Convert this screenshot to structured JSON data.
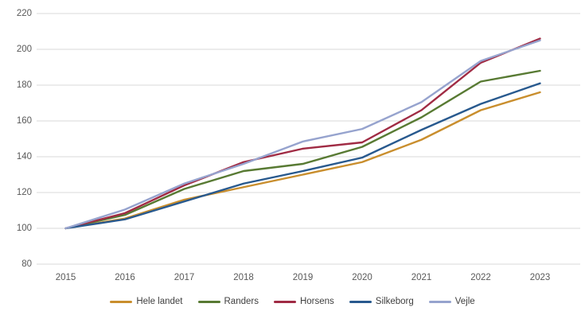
{
  "chart_data": {
    "type": "line",
    "categories": [
      "2015",
      "2016",
      "2017",
      "2018",
      "2019",
      "2020",
      "2021",
      "2022",
      "2023"
    ],
    "yticklabels": [
      "80",
      "100",
      "120",
      "140",
      "160",
      "180",
      "200",
      "220"
    ],
    "ylim": [
      80,
      220
    ],
    "ytick_step": 20,
    "grid": true,
    "legend_position": "bottom",
    "series": [
      {
        "name": "Hele landet",
        "color": "#C98E2D",
        "values": [
          100,
          105.5,
          116,
          123,
          130,
          137,
          149.5,
          166,
          176
        ]
      },
      {
        "name": "Randers",
        "color": "#587A33",
        "values": [
          100,
          107.5,
          122,
          132,
          136,
          145.5,
          162,
          182,
          188
        ]
      },
      {
        "name": "Horsens",
        "color": "#A02B44",
        "values": [
          100,
          108.5,
          124,
          137,
          144.5,
          148,
          166,
          192.5,
          206
        ]
      },
      {
        "name": "Silkeborg",
        "color": "#28598E",
        "values": [
          100,
          105,
          115,
          125,
          132,
          139.5,
          155,
          169.5,
          181
        ]
      },
      {
        "name": "Vejle",
        "color": "#96A3CE",
        "values": [
          100,
          110.5,
          125,
          136,
          148.5,
          155.5,
          170.5,
          193.5,
          205
        ]
      }
    ],
    "colors": {
      "gridline": "#D9D9D9",
      "axis_text": "#595959",
      "legend_text": "#404040",
      "background": "#FFFFFF"
    }
  }
}
